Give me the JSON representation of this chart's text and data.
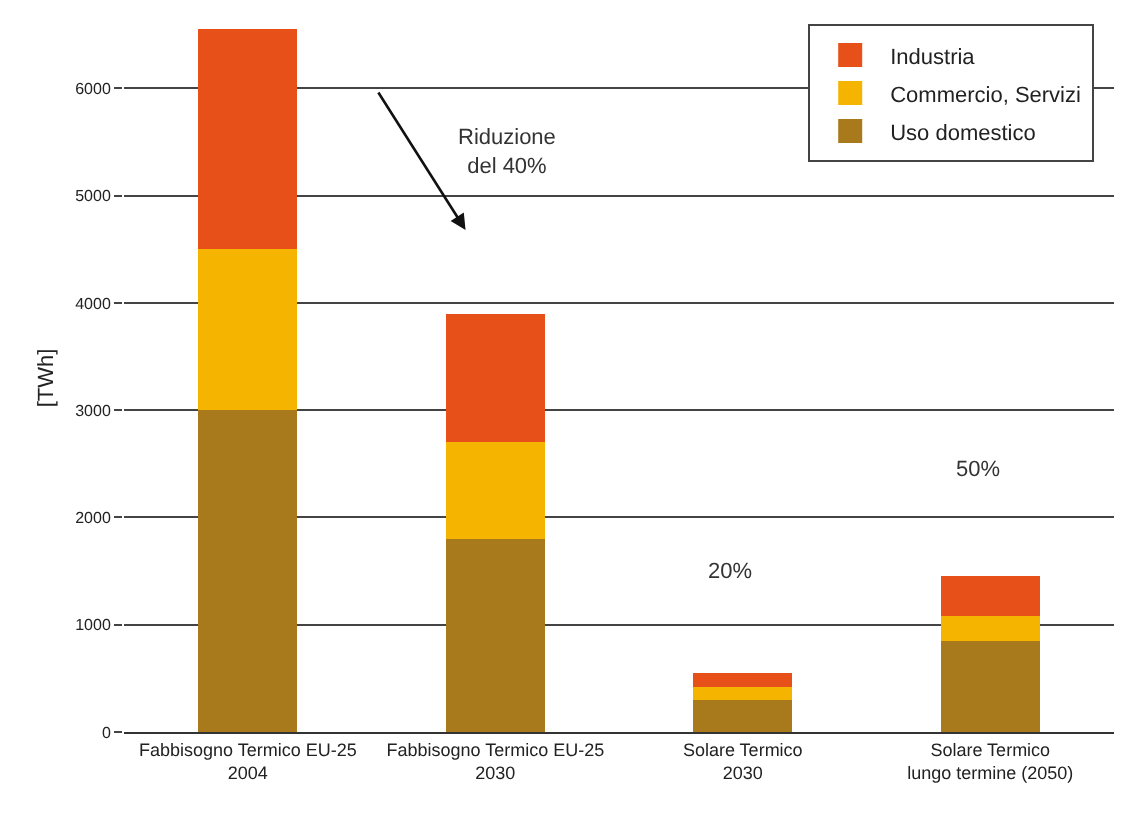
{
  "chart_data": {
    "type": "bar",
    "stacked": true,
    "ylabel": "[TWh]",
    "categories": [
      "Fabbisogno Termico EU-25\n2004",
      "Fabbisogno Termico EU-25\n2030",
      "Solare Termico\n2030",
      "Solare Termico\nlungo termine (2050)"
    ],
    "series": [
      {
        "name": "Uso domestico",
        "color": "#a87a1c",
        "values": [
          3000,
          1800,
          300,
          850
        ]
      },
      {
        "name": "Commercio, Servizi",
        "color": "#f5b400",
        "values": [
          1500,
          900,
          120,
          230
        ]
      },
      {
        "name": "Industria",
        "color": "#e8501a",
        "values": [
          2050,
          1200,
          130,
          370
        ]
      }
    ],
    "ylim": [
      0,
      6600
    ],
    "yticks": [
      0,
      1000,
      2000,
      3000,
      4000,
      5000,
      6000
    ],
    "grid": "y",
    "legend": "top right",
    "annotations": [
      "Riduzione\ndel 40%",
      "20%",
      "50%"
    ]
  }
}
